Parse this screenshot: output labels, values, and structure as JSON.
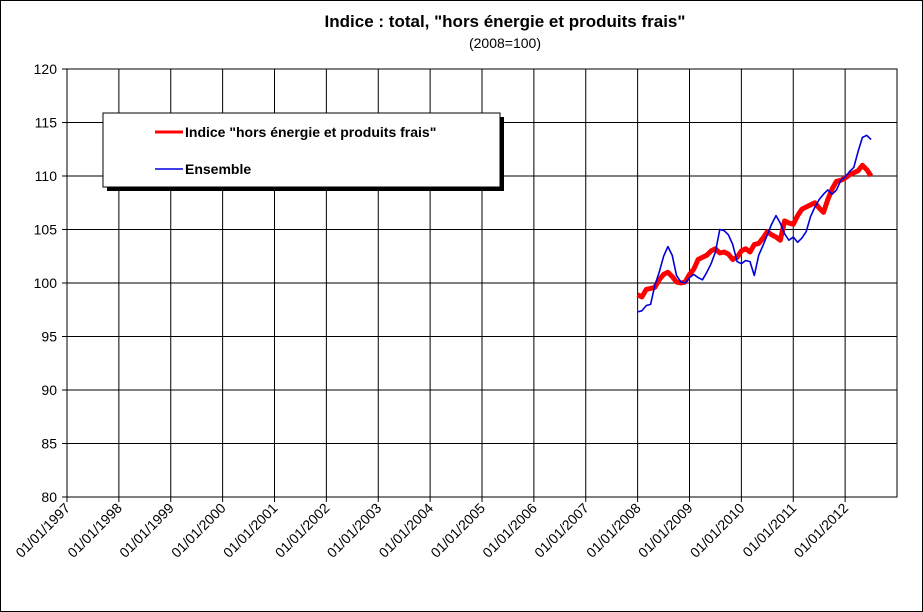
{
  "chart_data": {
    "type": "line",
    "title": "Indice : total, \"hors énergie et produits frais\"",
    "subtitle": "(2008=100)",
    "x": [
      "01/01/2008",
      "01/02/2008",
      "01/03/2008",
      "01/04/2008",
      "01/05/2008",
      "01/06/2008",
      "01/07/2008",
      "01/08/2008",
      "01/09/2008",
      "01/10/2008",
      "01/11/2008",
      "01/12/2008",
      "01/01/2009",
      "01/02/2009",
      "01/03/2009",
      "01/04/2009",
      "01/05/2009",
      "01/06/2009",
      "01/07/2009",
      "01/08/2009",
      "01/09/2009",
      "01/10/2009",
      "01/11/2009",
      "01/12/2009",
      "01/01/2010",
      "01/02/2010",
      "01/03/2010",
      "01/04/2010",
      "01/05/2010",
      "01/06/2010",
      "01/07/2010",
      "01/08/2010",
      "01/09/2010",
      "01/10/2010",
      "01/11/2010",
      "01/12/2010",
      "01/01/2011",
      "01/02/2011",
      "01/03/2011",
      "01/04/2011",
      "01/05/2011",
      "01/06/2011",
      "01/07/2011",
      "01/08/2011",
      "01/09/2011",
      "01/10/2011",
      "01/11/2011",
      "01/12/2011",
      "01/01/2012",
      "01/02/2012",
      "01/03/2012",
      "01/04/2012",
      "01/05/2012",
      "01/06/2012",
      "01/07/2012"
    ],
    "series": [
      {
        "name": "Indice \"hors énergie et produits frais\"",
        "color": "#ff0000",
        "width": 5,
        "values": [
          98.9,
          98.7,
          99.4,
          99.5,
          99.6,
          100.3,
          100.8,
          101.0,
          100.6,
          100.1,
          100.0,
          100.1,
          100.8,
          101.3,
          102.2,
          102.4,
          102.6,
          103.0,
          103.2,
          102.8,
          102.9,
          102.7,
          102.2,
          102.4,
          103.0,
          103.2,
          102.9,
          103.6,
          103.7,
          104.2,
          104.8,
          104.5,
          104.3,
          104.0,
          105.8,
          105.6,
          105.5,
          106.3,
          106.9,
          107.1,
          107.3,
          107.5,
          107.0,
          106.6,
          107.8,
          108.8,
          109.5,
          109.6,
          109.8,
          110.1,
          110.3,
          110.5,
          111.0,
          110.6,
          110.0
        ]
      },
      {
        "name": "Ensemble",
        "color": "#0000dd",
        "width": 1.6,
        "values": [
          97.3,
          97.4,
          97.9,
          98.0,
          99.8,
          101.0,
          102.5,
          103.4,
          102.6,
          100.7,
          100.1,
          100.0,
          100.5,
          100.8,
          100.5,
          100.3,
          101.0,
          101.8,
          102.9,
          105.0,
          104.9,
          104.5,
          103.6,
          102.0,
          101.8,
          102.1,
          102.0,
          100.7,
          102.6,
          103.5,
          104.5,
          105.5,
          106.3,
          105.6,
          104.6,
          104.0,
          104.3,
          103.8,
          104.2,
          104.8,
          106.2,
          107.1,
          107.8,
          108.3,
          108.7,
          108.3,
          108.7,
          109.6,
          109.9,
          110.4,
          110.8,
          112.3,
          113.6,
          113.8,
          113.4
        ]
      }
    ],
    "xlim": [
      "01/01/1997",
      "01/01/2013"
    ],
    "xticks": [
      "01/01/1997",
      "01/01/1998",
      "01/01/1999",
      "01/01/2000",
      "01/01/2001",
      "01/01/2002",
      "01/01/2003",
      "01/01/2004",
      "01/01/2005",
      "01/01/2006",
      "01/01/2007",
      "01/01/2008",
      "01/01/2009",
      "01/01/2010",
      "01/01/2011",
      "01/01/2012"
    ],
    "ylim": [
      80,
      120
    ],
    "yticks": [
      80,
      85,
      90,
      95,
      100,
      105,
      110,
      115,
      120
    ],
    "grid": true,
    "legend": "top-left"
  }
}
